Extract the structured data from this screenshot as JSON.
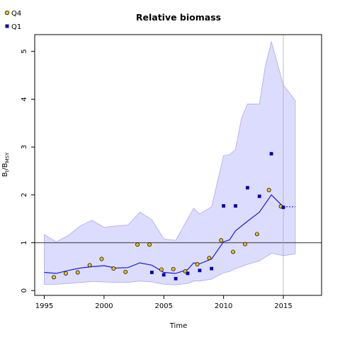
{
  "chart_data": {
    "type": "line",
    "title": "Relative biomass",
    "xlabel": "Time",
    "ylabel_main": "B",
    "ylabel_sub1": "t",
    "ylabel_mid": "/B",
    "ylabel_sub2": "MSY",
    "xlim": [
      1994.2,
      2018.2
    ],
    "ylim": [
      -0.1,
      5.35
    ],
    "xticks": [
      1995,
      2000,
      2005,
      2010,
      2015
    ],
    "yticks": [
      0,
      1,
      2,
      3,
      4,
      5
    ],
    "reference_line_y": 1,
    "reference_line_x": 2015,
    "legend": {
      "placement": "top-left",
      "entries": [
        {
          "label": "Q4",
          "marker": "circle",
          "color": "#e8c21a"
        },
        {
          "label": "Q1",
          "marker": "square",
          "color": "#0000b0"
        }
      ]
    },
    "colors": {
      "estimate_line": "#1a1ae6",
      "interval_fill": "#dcdcff",
      "interval_stroke": "#a9a9f2",
      "reference_line": "#555555",
      "reference_vline": "#b0b0b0"
    },
    "estimate": {
      "x": [
        1995,
        1996,
        1997,
        1998,
        1999,
        2000,
        2001,
        2002,
        2003,
        2004,
        2005,
        2006,
        2007,
        2007.5,
        2008,
        2009,
        2010,
        2010.5,
        2011,
        2012,
        2013,
        2014,
        2015
      ],
      "y": [
        0.38,
        0.36,
        0.42,
        0.47,
        0.5,
        0.52,
        0.47,
        0.48,
        0.58,
        0.53,
        0.38,
        0.36,
        0.44,
        0.58,
        0.56,
        0.66,
        1.02,
        1.06,
        1.25,
        1.45,
        1.64,
        2.0,
        1.75
      ]
    },
    "projection": {
      "x": [
        2015,
        2016
      ],
      "y": [
        1.75,
        1.75
      ]
    },
    "interval": {
      "x": [
        1995,
        1996,
        1997,
        1998,
        1999,
        2000,
        2001,
        2002,
        2003,
        2004,
        2005,
        2006,
        2007,
        2007.5,
        2008,
        2009,
        2010,
        2010.5,
        2011,
        2011.5,
        2012,
        2013,
        2013.5,
        2014,
        2015,
        2016
      ],
      "lower": [
        0.13,
        0.13,
        0.15,
        0.17,
        0.19,
        0.18,
        0.17,
        0.17,
        0.2,
        0.18,
        0.13,
        0.12,
        0.15,
        0.2,
        0.2,
        0.24,
        0.37,
        0.4,
        0.46,
        0.5,
        0.55,
        0.62,
        0.7,
        0.78,
        0.73,
        0.77
      ],
      "upper": [
        1.17,
        1.02,
        1.15,
        1.35,
        1.47,
        1.32,
        1.35,
        1.37,
        1.64,
        1.48,
        1.08,
        1.05,
        1.5,
        1.72,
        1.6,
        1.75,
        2.82,
        2.84,
        2.95,
        3.6,
        3.9,
        3.9,
        4.7,
        5.2,
        4.3,
        3.97
      ]
    },
    "series": [
      {
        "name": "Q4",
        "marker": "circle",
        "x": [
          1995.8,
          1996.8,
          1997.8,
          1998.8,
          1999.8,
          2000.8,
          2001.8,
          2002.8,
          2003.8,
          2004.8,
          2005.8,
          2006.8,
          2007.8,
          2008.8,
          2009.8,
          2010.8,
          2011.8,
          2012.8,
          2013.8,
          2014.8
        ],
        "y": [
          0.28,
          0.36,
          0.38,
          0.53,
          0.66,
          0.46,
          0.39,
          0.96,
          0.96,
          0.44,
          0.45,
          0.4,
          0.55,
          0.68,
          1.05,
          0.81,
          0.97,
          1.18,
          2.1,
          1.76
        ]
      },
      {
        "name": "Q1",
        "marker": "square",
        "x": [
          2004,
          2005,
          2006,
          2007,
          2008,
          2009,
          2010,
          2011,
          2012,
          2013,
          2014,
          2015
        ],
        "y": [
          0.38,
          0.33,
          0.25,
          0.36,
          0.42,
          0.46,
          1.77,
          1.77,
          2.15,
          1.97,
          2.86,
          1.74
        ]
      }
    ]
  }
}
